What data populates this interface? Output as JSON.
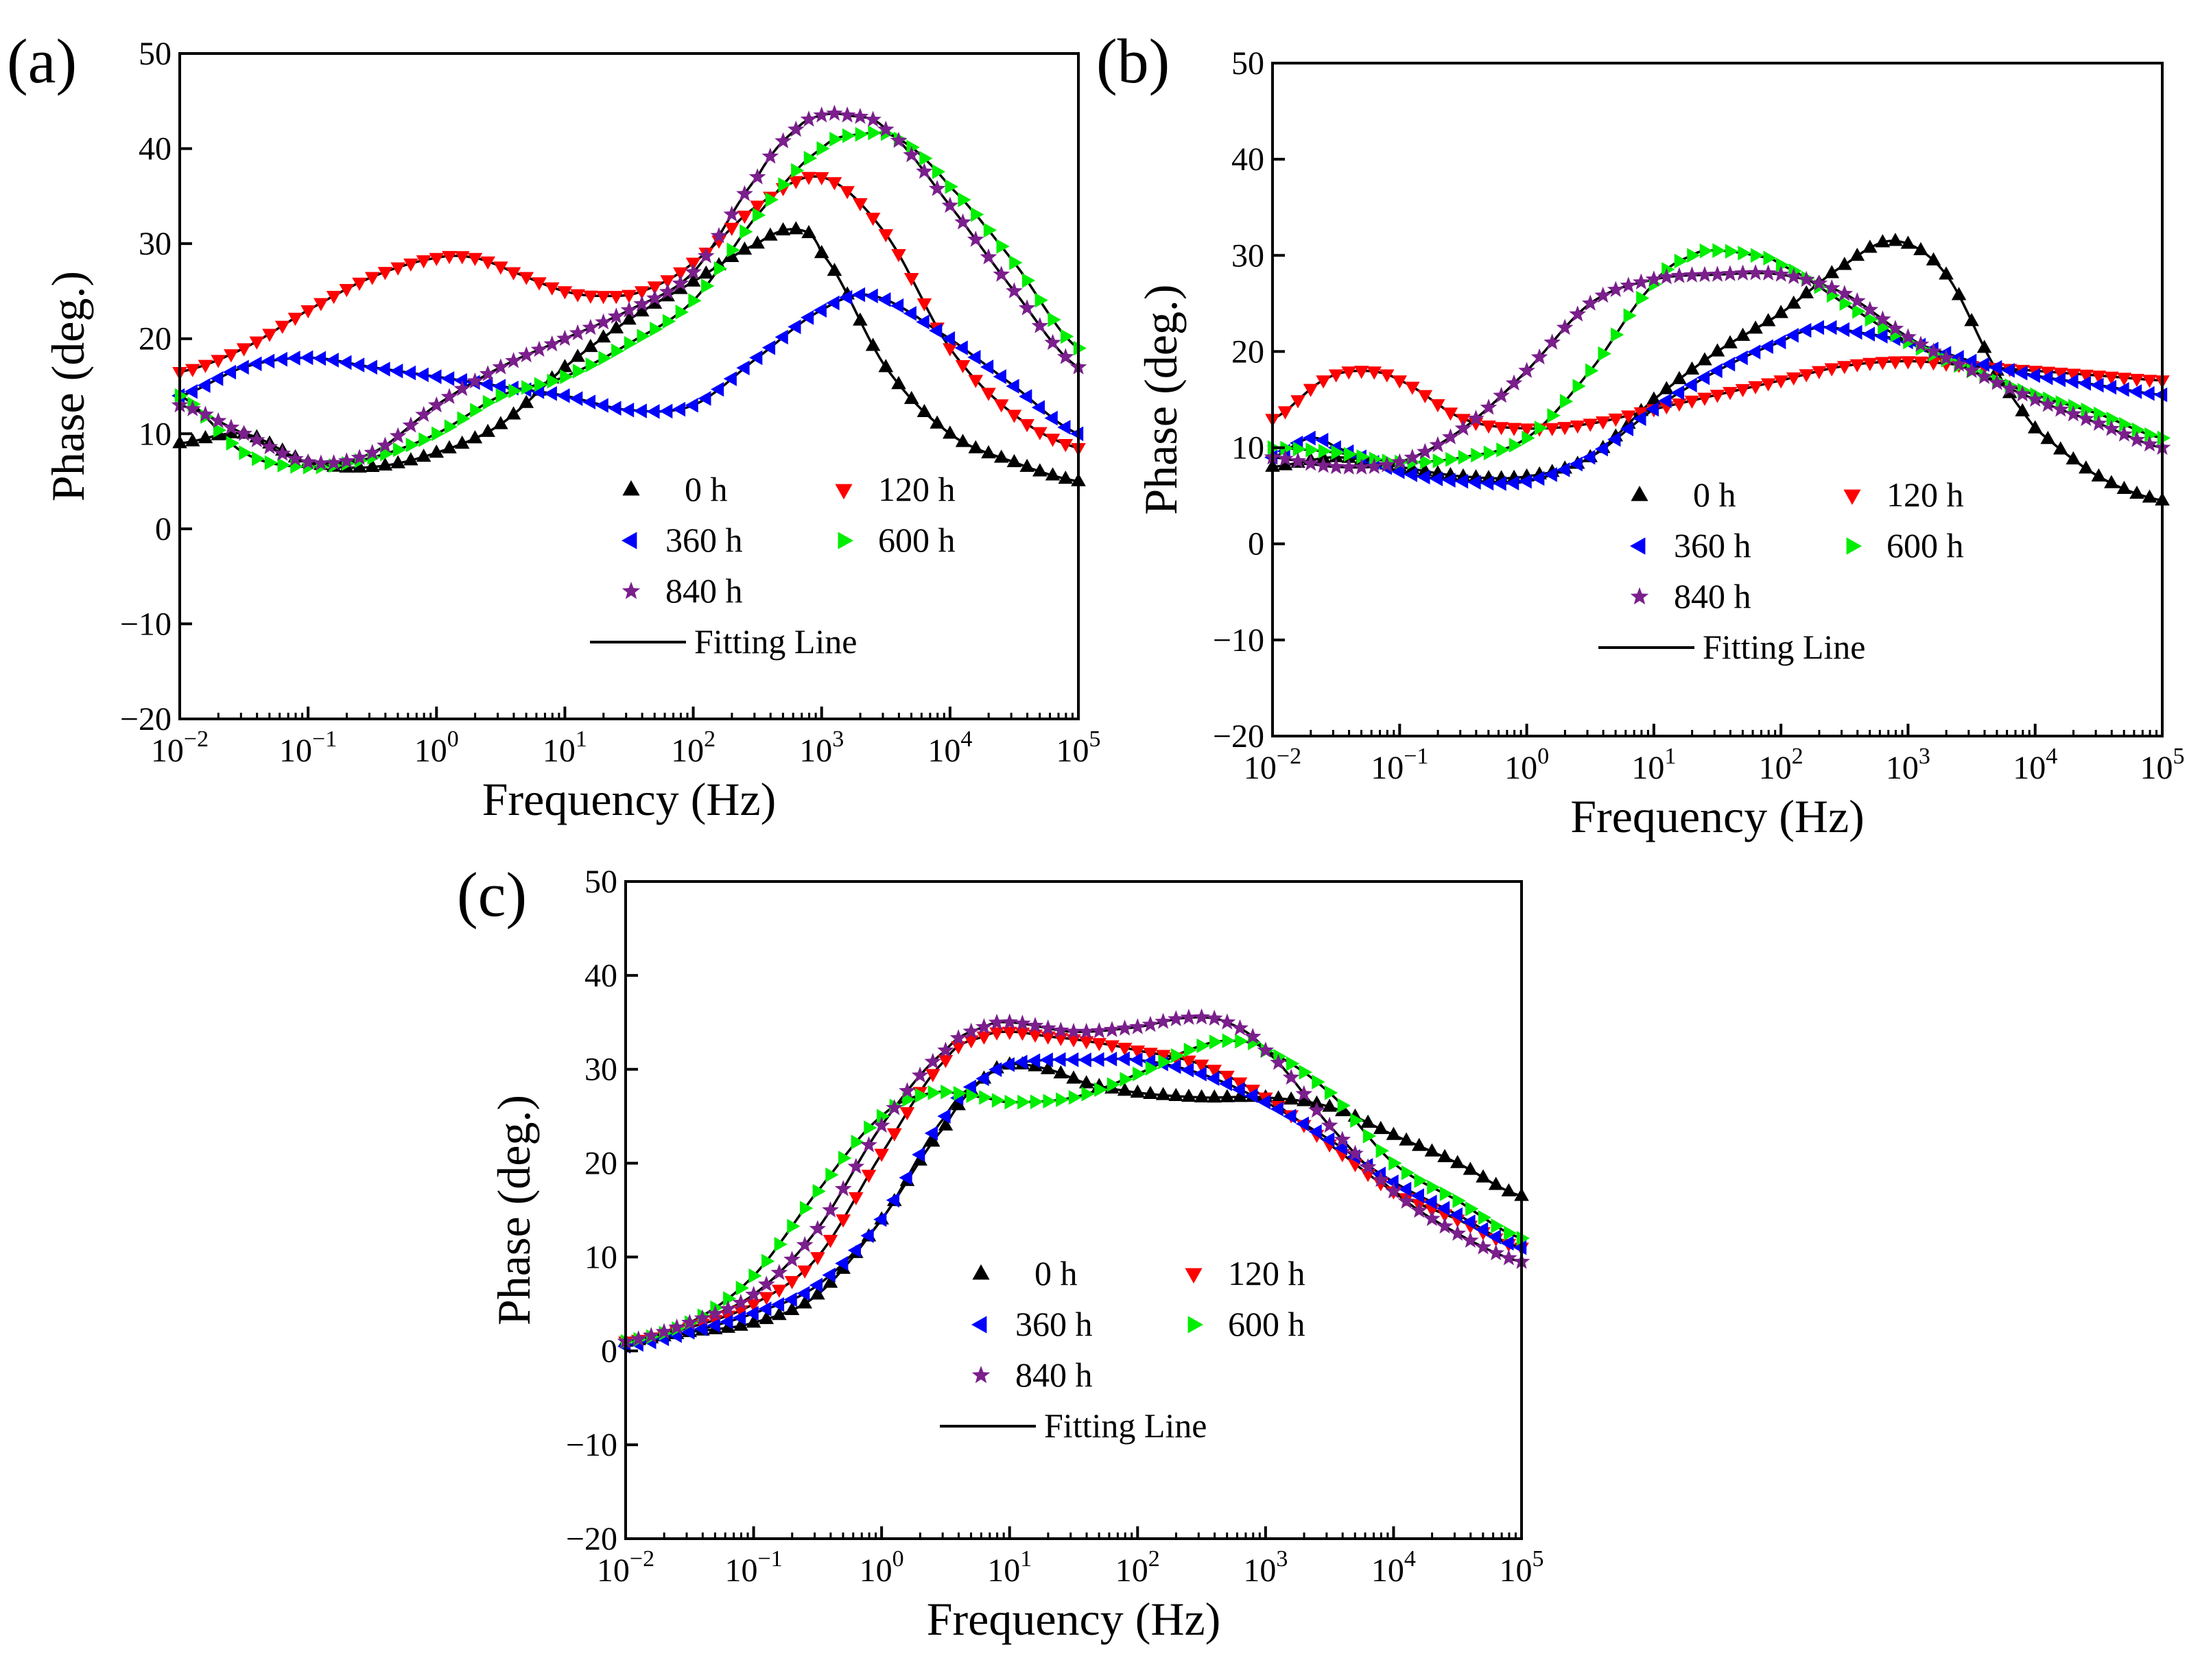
{
  "chart_data": [
    {
      "panel_label": "(a)",
      "type": "scatter",
      "xlabel": "Frequency (Hz)",
      "ylabel": "Phase (deg.)",
      "xscale": "log",
      "xlim_exp": [
        -2,
        5
      ],
      "ylim": [
        -20,
        50
      ],
      "yticks": [
        -20,
        -10,
        0,
        10,
        20,
        30,
        40,
        50
      ],
      "grid": false,
      "legend_position": "lower-right",
      "fit_label": "Fitting Line",
      "series": [
        {
          "name": "0 h",
          "color": "#000000",
          "marker": "triangle-up",
          "x": [
            -2,
            -1.5,
            -1,
            -0.5,
            0,
            0.5,
            1,
            1.5,
            2,
            2.5,
            2.8,
            3,
            3.5,
            4,
            4.5,
            5
          ],
          "y": [
            9,
            10,
            7,
            6.5,
            8,
            11,
            17,
            22,
            26,
            30,
            31.5,
            29,
            17,
            10,
            7,
            5
          ]
        },
        {
          "name": "120 h",
          "color": "#ff0000",
          "marker": "triangle-down",
          "x": [
            -2,
            -1.5,
            -1,
            -0.5,
            0,
            0.3,
            0.6,
            1,
            1.3,
            1.6,
            2,
            2.5,
            3,
            3.5,
            4,
            4.5,
            5
          ],
          "y": [
            16.5,
            19,
            23,
            26.5,
            28.5,
            28.5,
            27,
            25,
            24.5,
            25,
            28,
            34,
            37,
            31,
            19,
            12,
            8.5
          ]
        },
        {
          "name": "360 h",
          "color": "#0000ff",
          "marker": "triangle-left",
          "x": [
            -2,
            -1.5,
            -1,
            -0.5,
            0,
            0.5,
            1,
            1.5,
            2,
            2.5,
            3,
            3.4,
            4,
            4.5,
            5
          ],
          "y": [
            14,
            17,
            18,
            17,
            16,
            15,
            14,
            12.5,
            13,
            18,
            23,
            24.5,
            20,
            15,
            10
          ]
        },
        {
          "name": "600 h",
          "color": "#00ee00",
          "marker": "triangle-right",
          "x": [
            -2,
            -1.5,
            -1,
            -0.5,
            0,
            0.5,
            1,
            1.5,
            2,
            2.5,
            3,
            3.3,
            3.6,
            4,
            4.5,
            5
          ],
          "y": [
            14,
            8,
            6.5,
            7.5,
            10,
            14,
            16,
            19.5,
            24,
            33,
            40,
            41.5,
            41,
            36,
            28,
            19
          ]
        },
        {
          "name": "840 h",
          "color": "#7a1f8c",
          "marker": "star",
          "x": [
            -2,
            -1.5,
            -1,
            -0.5,
            0,
            0.5,
            1,
            1.5,
            2,
            2.5,
            2.8,
            3,
            3.2,
            3.5,
            4,
            4.5,
            5
          ],
          "y": [
            13,
            10,
            7,
            8,
            13,
            17,
            20,
            23,
            27,
            37,
            42,
            43.5,
            43.5,
            42,
            34,
            25,
            17
          ]
        }
      ]
    },
    {
      "panel_label": "(b)",
      "type": "scatter",
      "xlabel": "Frequency (Hz)",
      "ylabel": "Phase (deg.)",
      "xscale": "log",
      "xlim_exp": [
        -2,
        5
      ],
      "ylim": [
        -20,
        50
      ],
      "yticks": [
        -20,
        -10,
        0,
        10,
        20,
        30,
        40,
        50
      ],
      "grid": false,
      "legend_position": "lower-right",
      "fit_label": "Fitting Line",
      "series": [
        {
          "name": "0 h",
          "color": "#000000",
          "marker": "triangle-up",
          "x": [
            -2,
            -1.5,
            -1,
            -0.5,
            0,
            0.5,
            1,
            1.5,
            2,
            2.5,
            2.9,
            3.3,
            3.7,
            4,
            4.5,
            5
          ],
          "y": [
            8,
            9,
            8,
            7,
            7,
            9,
            15,
            20,
            24,
            29,
            31.5,
            28,
            18,
            12,
            7,
            4.5
          ]
        },
        {
          "name": "120 h",
          "color": "#ff0000",
          "marker": "triangle-down",
          "x": [
            -2,
            -1.6,
            -1.3,
            -1,
            -0.5,
            0,
            0.5,
            1,
            1.5,
            2,
            2.5,
            3,
            3.5,
            4,
            4.5,
            5
          ],
          "y": [
            13,
            17,
            18,
            17,
            13,
            12,
            12.5,
            14,
            15.5,
            17,
            18.5,
            19,
            18.5,
            18,
            17.5,
            17
          ]
        },
        {
          "name": "360 h",
          "color": "#0000ff",
          "marker": "triangle-left",
          "x": [
            -2,
            -1.7,
            -1.5,
            -1,
            -0.5,
            0,
            0.5,
            1,
            1.5,
            2,
            2.3,
            2.6,
            3,
            3.5,
            4,
            4.5,
            5
          ],
          "y": [
            9,
            11,
            10,
            7.5,
            6.5,
            6.5,
            9,
            14,
            18,
            21,
            22.5,
            22,
            21,
            19,
            17.5,
            16.5,
            15.5
          ]
        },
        {
          "name": "600 h",
          "color": "#00ee00",
          "marker": "triangle-right",
          "x": [
            -2,
            -1.5,
            -1,
            -0.5,
            0,
            0.5,
            1,
            1.3,
            1.5,
            1.8,
            2,
            2.5,
            3,
            3.5,
            4,
            4.5,
            5
          ],
          "y": [
            10,
            9.5,
            8.5,
            9,
            11,
            18,
            27,
            30,
            30.5,
            30,
            29,
            25,
            21,
            18,
            15.5,
            13.5,
            11
          ]
        },
        {
          "name": "840 h",
          "color": "#7a1f8c",
          "marker": "star",
          "x": [
            -2,
            -1.5,
            -1,
            -0.5,
            0,
            0.5,
            1,
            1.5,
            2,
            2.5,
            3,
            3.5,
            4,
            4.5,
            5
          ],
          "y": [
            9,
            8,
            8.5,
            12,
            18,
            25,
            27.5,
            28,
            28,
            26,
            21.5,
            18,
            15,
            12.5,
            10
          ]
        }
      ]
    },
    {
      "panel_label": "(c)",
      "type": "scatter",
      "xlabel": "Frequency (Hz)",
      "ylabel": "Phase (deg.)",
      "xscale": "log",
      "xlim_exp": [
        -2,
        5
      ],
      "ylim": [
        -20,
        50
      ],
      "yticks": [
        -20,
        -10,
        0,
        10,
        20,
        30,
        40,
        50
      ],
      "grid": false,
      "legend_position": "lower-right",
      "fit_label": "Fitting Line",
      "series": [
        {
          "name": "0 h",
          "color": "#000000",
          "marker": "triangle-up",
          "x": [
            -2,
            -1.5,
            -1,
            -0.5,
            0,
            0.5,
            0.8,
            1,
            1.3,
            1.6,
            2,
            2.5,
            3,
            3.5,
            4,
            4.5,
            5
          ],
          "y": [
            1,
            2,
            3,
            6,
            14,
            24,
            29,
            30.5,
            30,
            28.5,
            27.5,
            27,
            27,
            26,
            23,
            20,
            16.5
          ]
        },
        {
          "name": "120 h",
          "color": "#ff0000",
          "marker": "triangle-down",
          "x": [
            -2,
            -1.5,
            -1,
            -0.5,
            0,
            0.5,
            0.8,
            1,
            1.3,
            1.6,
            2,
            2.5,
            3,
            3.5,
            4,
            4.5,
            5
          ],
          "y": [
            1,
            2.5,
            5,
            10,
            21,
            31,
            33.5,
            34,
            33.5,
            33,
            32,
            30.5,
            27,
            22,
            17,
            14,
            11
          ]
        },
        {
          "name": "360 h",
          "color": "#0000ff",
          "marker": "triangle-left",
          "x": [
            -2,
            -1.5,
            -1,
            -0.5,
            0,
            0.5,
            0.8,
            1,
            1.3,
            1.6,
            2,
            2.5,
            3,
            3.5,
            4,
            4.5,
            5
          ],
          "y": [
            0.5,
            2,
            4,
            7,
            14,
            25,
            29,
            30.5,
            31,
            31,
            31,
            29.5,
            26.5,
            22.5,
            18,
            14.5,
            11
          ]
        },
        {
          "name": "600 h",
          "color": "#00ee00",
          "marker": "triangle-right",
          "x": [
            -2,
            -1.5,
            -1,
            -0.5,
            0,
            0.4,
            0.8,
            1,
            1.5,
            2,
            2.5,
            2.8,
            3,
            3.5,
            4,
            4.5,
            5
          ],
          "y": [
            1,
            3,
            8,
            17,
            25,
            27.5,
            27,
            26.5,
            27,
            29.5,
            32.5,
            33,
            32,
            27.5,
            20,
            16,
            12
          ]
        },
        {
          "name": "840 h",
          "color": "#7a1f8c",
          "marker": "star",
          "x": [
            -2,
            -1.5,
            -1,
            -0.5,
            0,
            0.5,
            0.8,
            1,
            1.5,
            2,
            2.4,
            2.7,
            3,
            3.5,
            4,
            4.5,
            5
          ],
          "y": [
            1,
            3,
            6,
            13,
            24,
            32,
            34.5,
            35,
            34,
            34.5,
            35.5,
            35,
            32,
            24,
            17,
            12.5,
            9.5
          ]
        }
      ]
    }
  ]
}
